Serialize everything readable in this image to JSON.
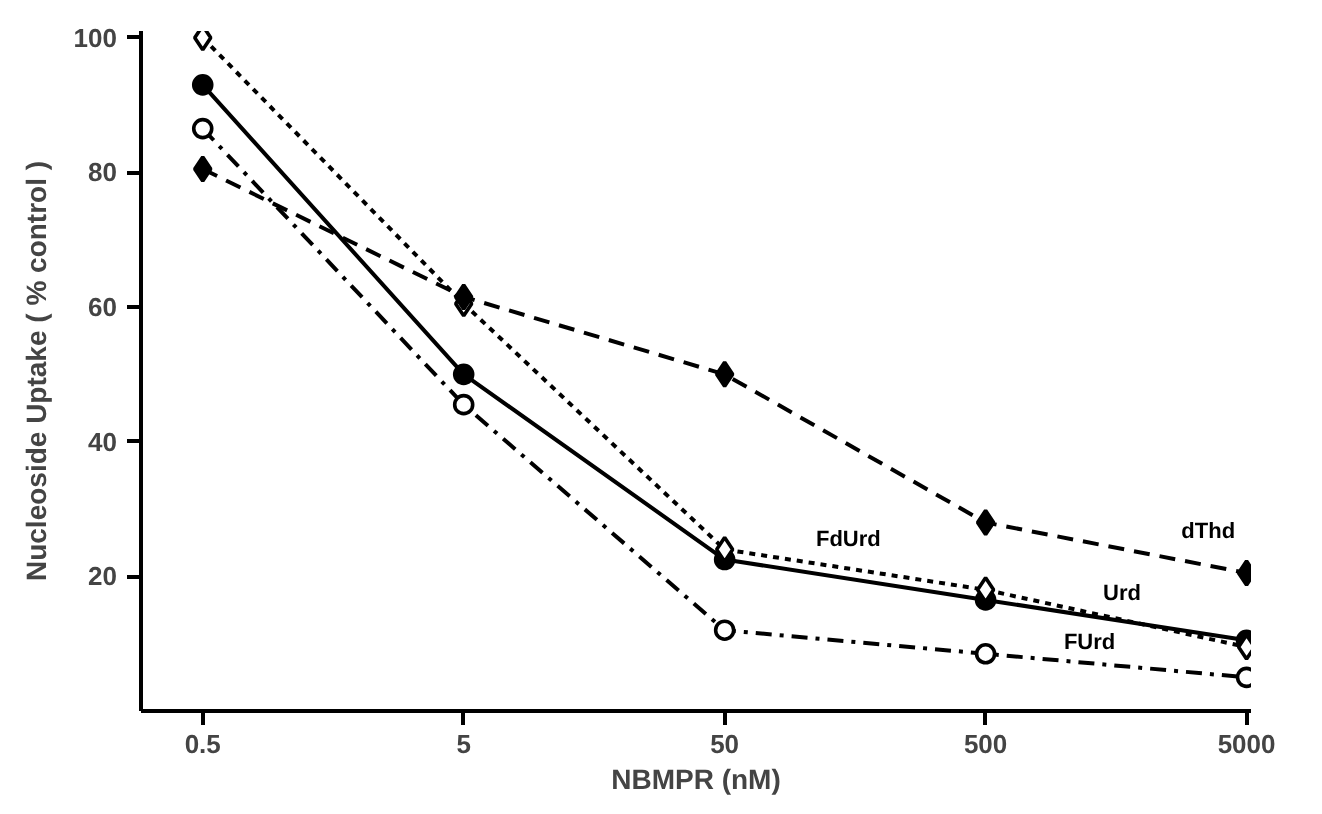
{
  "chart_data": {
    "type": "line",
    "xlabel": "NBMPR (nM)",
    "ylabel": "Nucleoside Uptake ( % control )",
    "x": [
      0.5,
      5,
      50,
      500,
      5000
    ],
    "log": "x",
    "xlim": [
      0.29,
      5200
    ],
    "xticks": [
      0.5,
      5,
      50,
      500,
      5000
    ],
    "ylim": [
      0,
      101
    ],
    "yticks": [
      20,
      40,
      60,
      80,
      100
    ],
    "grid": false,
    "legend": false,
    "series": [
      {
        "name": "Urd",
        "color": "#000000",
        "marker": "circle",
        "line_style": "solid",
        "values": [
          93,
          50,
          22.5,
          16.5,
          10.5
        ]
      },
      {
        "name": "FdUrd",
        "color": "#000000",
        "marker": "diamond_open",
        "line_style": "dotted",
        "values": [
          100,
          60.5,
          24,
          18,
          9.5
        ]
      },
      {
        "name": "FUrd",
        "color": "#000000",
        "marker": "circle_open",
        "line_style": "dashdot",
        "values": [
          86.5,
          45.5,
          12,
          8.5,
          5
        ]
      },
      {
        "name": "dThd",
        "color": "#000000",
        "marker": "diamond",
        "line_style": "dashed",
        "values": [
          80.5,
          61.5,
          50,
          28,
          20.5
        ]
      }
    ]
  }
}
